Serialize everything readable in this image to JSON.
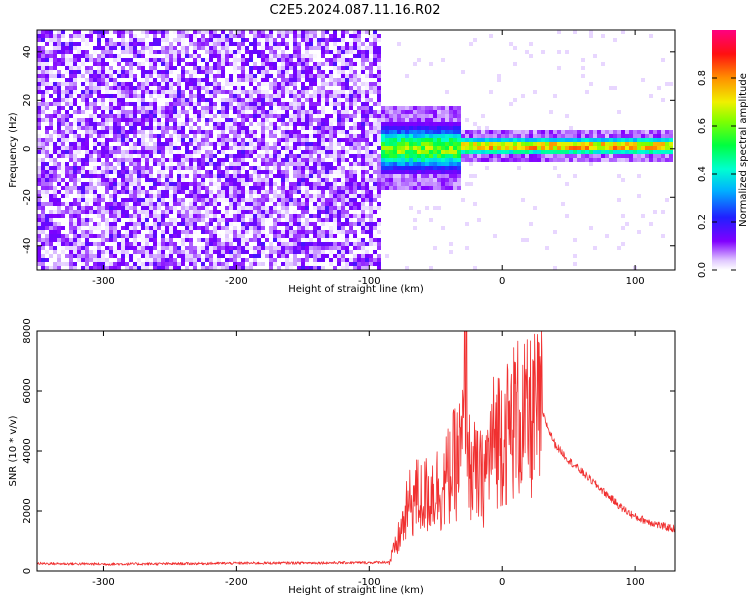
{
  "title": "C2E5.2024.087.11.16.R02",
  "colors": {
    "line": "#f03030",
    "axis": "#000000",
    "background": "#ffffff"
  },
  "chart_data": [
    {
      "type": "heatmap",
      "title": "C2E5.2024.087.11.16.R02",
      "xlabel": "Height of straight line (km)",
      "ylabel": "Frequency (Hz)",
      "xlim": [
        -350,
        130
      ],
      "ylim": [
        -50,
        49
      ],
      "xticks": [
        -300,
        -200,
        -100,
        0,
        100
      ],
      "xtick_labels": [
        "-300",
        "-200",
        "-100",
        "0",
        "100"
      ],
      "yticks": [
        -40,
        -20,
        0,
        20,
        40
      ],
      "ytick_labels": [
        "-40",
        "-20",
        "0",
        "20",
        "40"
      ],
      "colorbar": {
        "label": "Normalized spectral amplitude",
        "range": [
          0,
          1
        ],
        "ticks": [
          0.0,
          0.2,
          0.4,
          0.6,
          0.8
        ],
        "tick_labels": [
          "0.0",
          "0.2",
          "0.4",
          "0.6",
          "0.8"
        ],
        "colormap": "rainbow (white-violet-blue-cyan-green-yellow-red-magenta)"
      },
      "regions": [
        {
          "x_range": [
            -350,
            -90
          ],
          "freq_range": [
            -50,
            49
          ],
          "description": "broadband noise",
          "amplitude": [
            0.0,
            0.15
          ]
        },
        {
          "x_range": [
            -90,
            -30
          ],
          "freq_center": 0,
          "freq_halfwidth": 8,
          "amplitude": [
            0.2,
            0.7
          ]
        },
        {
          "x_range": [
            -30,
            130
          ],
          "freq_center": 1,
          "freq_halfwidth": 3,
          "amplitude": [
            0.4,
            0.9
          ]
        }
      ]
    },
    {
      "type": "line",
      "xlabel": "Height of straight line (km)",
      "ylabel": "SNR (10 * v/v)",
      "xlim": [
        -350,
        130
      ],
      "ylim": [
        0,
        8000
      ],
      "xticks": [
        -300,
        -200,
        -100,
        0,
        100
      ],
      "xtick_labels": [
        "-300",
        "-200",
        "-100",
        "0",
        "100"
      ],
      "yticks": [
        0,
        2000,
        4000,
        6000,
        8000
      ],
      "ytick_labels": [
        "0",
        "2000",
        "4000",
        "6000",
        "8000"
      ],
      "series": [
        {
          "x": [
            -350,
            -300,
            -250,
            -200,
            -150,
            -100,
            -85,
            -80,
            -75,
            -70,
            -65,
            -60,
            -55,
            -50,
            -45,
            -40,
            -35,
            -30,
            -27,
            -25,
            -20,
            -15,
            -10,
            -5,
            0,
            5,
            10,
            15,
            20,
            25,
            30,
            35,
            40,
            50,
            60,
            70,
            80,
            90,
            100,
            110,
            120,
            130
          ],
          "y": [
            250,
            230,
            240,
            260,
            270,
            280,
            300,
            800,
            1500,
            2200,
            2500,
            2400,
            2600,
            2800,
            2700,
            3200,
            3600,
            4000,
            7500,
            3500,
            3200,
            3000,
            3800,
            4500,
            4700,
            4600,
            5200,
            4900,
            5000,
            5200,
            5300,
            4700,
            4200,
            3700,
            3300,
            2900,
            2500,
            2100,
            1800,
            1650,
            1500,
            1400
          ]
        }
      ]
    }
  ]
}
